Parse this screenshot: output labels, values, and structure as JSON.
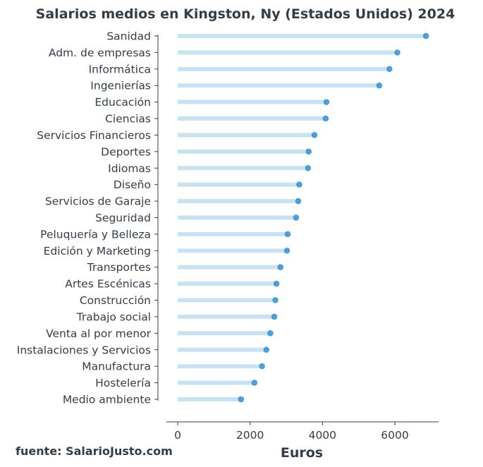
{
  "chart_data": {
    "type": "lollipop",
    "title": "Salarios medios en Kingston, Ny (Estados Unidos) 2024",
    "xlabel": "Euros",
    "ylabel": "",
    "xlim": [
      0,
      7200
    ],
    "xticks": [
      0,
      2000,
      4000,
      6000
    ],
    "source": "fuente: SalarioJusto.com",
    "colors": {
      "stem": "#c9e2f1",
      "dot": "#3a8fd0",
      "axis": "#333d47"
    },
    "categories": [
      "Sanidad",
      "Adm. de empresas",
      "Informática",
      "Ingenierías",
      "Educación",
      "Ciencias",
      "Servicios Financieros",
      "Deportes",
      "Idiomas",
      "Diseño",
      "Servicios de Garaje",
      "Seguridad",
      "Peluquería y Belleza",
      "Edición y Marketing",
      "Transportes",
      "Artes Escénicas",
      "Construcción",
      "Trabajo social",
      "Venta al por menor",
      "Instalaciones y Servicios",
      "Manufactura",
      "Hostelería",
      "Medio ambiente"
    ],
    "values": [
      6860,
      6070,
      5850,
      5570,
      4110,
      4090,
      3780,
      3620,
      3600,
      3360,
      3330,
      3270,
      3040,
      3020,
      2840,
      2730,
      2700,
      2670,
      2560,
      2450,
      2330,
      2120,
      1750
    ]
  }
}
